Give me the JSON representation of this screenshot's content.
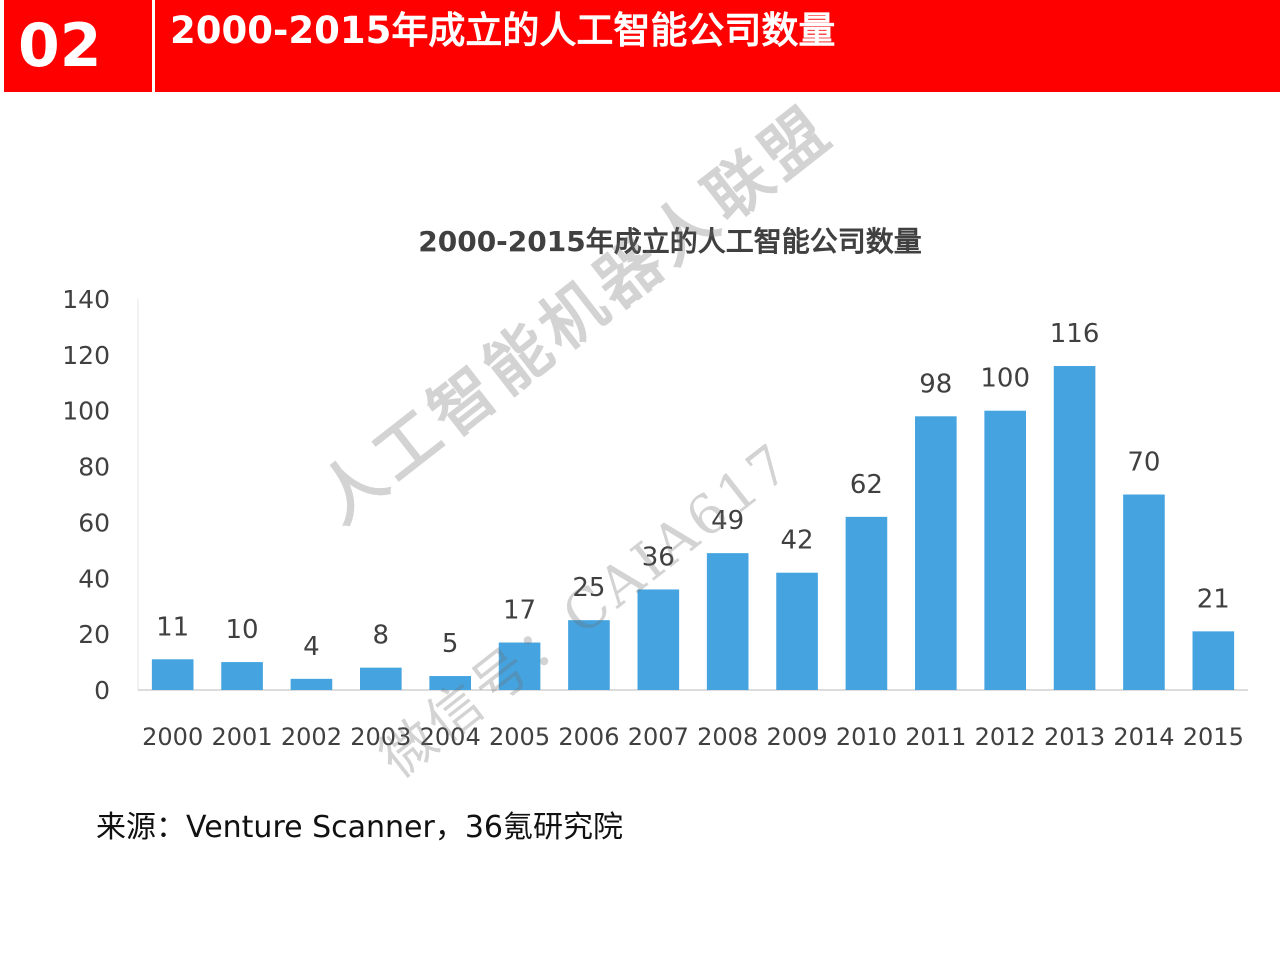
{
  "header": {
    "number": "02",
    "title": "2000-2015年成立的人工智能公司数量"
  },
  "colors": {
    "header_red": "#ff0000",
    "bar_blue": "#45a4e0",
    "axis_text": "#404040"
  },
  "chart_data": {
    "type": "bar",
    "title": "2000-2015年成立的人工智能公司数量",
    "xlabel": "",
    "ylabel": "",
    "categories": [
      "2000",
      "2001",
      "2002",
      "2003",
      "2004",
      "2005",
      "2006",
      "2007",
      "2008",
      "2009",
      "2010",
      "2011",
      "2012",
      "2013",
      "2014",
      "2015"
    ],
    "values": [
      11,
      10,
      4,
      8,
      5,
      17,
      25,
      36,
      49,
      42,
      62,
      98,
      100,
      116,
      70,
      21
    ],
    "ylim": [
      0,
      140
    ],
    "yticks": [
      0,
      20,
      40,
      60,
      80,
      100,
      120,
      140
    ],
    "grid": false,
    "legend": "none",
    "data_labels": true
  },
  "source": "来源：Venture Scanner，36氪研究院",
  "watermark": {
    "line1": "人工智能机器人联盟",
    "line2": "微信号：CAIA617"
  }
}
